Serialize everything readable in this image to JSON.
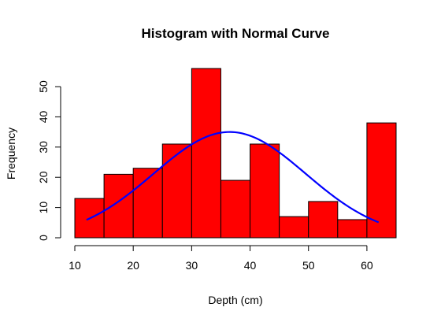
{
  "chart_data": {
    "type": "bar",
    "title": "Histogram with Normal Curve",
    "xlabel": "Depth (cm)",
    "ylabel": "Frequency",
    "bins": [
      {
        "start": 10,
        "end": 15,
        "count": 13
      },
      {
        "start": 15,
        "end": 20,
        "count": 21
      },
      {
        "start": 20,
        "end": 25,
        "count": 23
      },
      {
        "start": 25,
        "end": 30,
        "count": 31
      },
      {
        "start": 30,
        "end": 35,
        "count": 56
      },
      {
        "start": 35,
        "end": 40,
        "count": 19
      },
      {
        "start": 40,
        "end": 45,
        "count": 31
      },
      {
        "start": 45,
        "end": 50,
        "count": 7
      },
      {
        "start": 50,
        "end": 55,
        "count": 12
      },
      {
        "start": 55,
        "end": 60,
        "count": 6
      },
      {
        "start": 60,
        "end": 65,
        "count": 38
      }
    ],
    "xlim": [
      10,
      65
    ],
    "ylim": [
      0,
      56
    ],
    "xticks": [
      10,
      20,
      30,
      40,
      50,
      60
    ],
    "yticks": [
      0,
      10,
      20,
      30,
      40,
      50
    ],
    "bar_color": "#ff0000",
    "bar_border_color": "#000000",
    "normal_curve": {
      "color": "#0000ff",
      "mean": 36.5,
      "sd": 13.0,
      "peak_frequency": 35,
      "x_range": [
        12,
        62
      ]
    },
    "grid": false,
    "legend": "none"
  }
}
